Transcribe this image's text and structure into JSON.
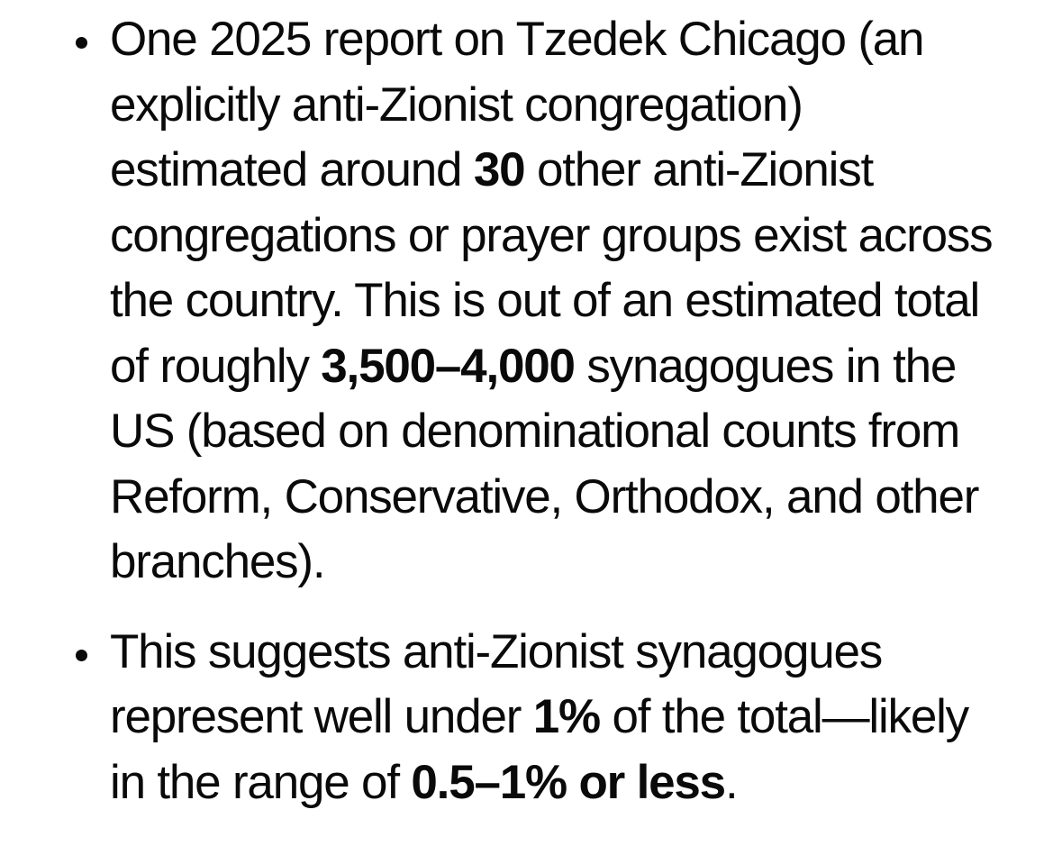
{
  "page": {
    "background_color": "#ffffff",
    "text_color": "#0a0a0a",
    "marker_glyph": "•"
  },
  "bullets": [
    {
      "full_text": "One 2025 report on Tzedek Chicago (an explicitly anti-Zionist congregation) estimated around 30 other anti-Zionist congregations or prayer groups exist across the country. This is out of an estimated total of roughly 3,500–4,000 synagogues in the US (based on denominational counts from Reform, Conservative, Orthodox, and other branches).",
      "bold_values": [
        "30",
        "3,500–4,000"
      ],
      "lines": [
        [
          {
            "text": "One 2025 report on Tzedek Chicago (an"
          }
        ],
        [
          {
            "text": "explicitly anti-Zionist congregation)"
          }
        ],
        [
          {
            "text": "estimated around "
          },
          {
            "text": "30",
            "bold": true
          },
          {
            "text": " other anti-Zionist"
          }
        ],
        [
          {
            "text": "congregations or prayer groups exist across"
          }
        ],
        [
          {
            "text": "the country. This is out of an estimated total"
          }
        ],
        [
          {
            "text": "of roughly "
          },
          {
            "text": "3,500–4,000",
            "bold": true
          },
          {
            "text": " synagogues in the"
          }
        ],
        [
          {
            "text": "US (based on denominational counts from"
          }
        ],
        [
          {
            "text": "Reform, Conservative, Orthodox, and other"
          }
        ],
        [
          {
            "text": "branches)."
          }
        ]
      ]
    },
    {
      "full_text": "This suggests anti-Zionist synagogues represent well under 1% of the total—likely in the range of 0.5–1% or less.",
      "bold_values": [
        "1%",
        "0.5–1% or less"
      ],
      "lines": [
        [
          {
            "text": "This suggests anti-Zionist synagogues"
          }
        ],
        [
          {
            "text": "represent well under "
          },
          {
            "text": "1%",
            "bold": true
          },
          {
            "text": " of the total—likely"
          }
        ],
        [
          {
            "text": "in the range of "
          },
          {
            "text": "0.5–1% or less",
            "bold": true
          },
          {
            "text": "."
          }
        ]
      ]
    }
  ]
}
